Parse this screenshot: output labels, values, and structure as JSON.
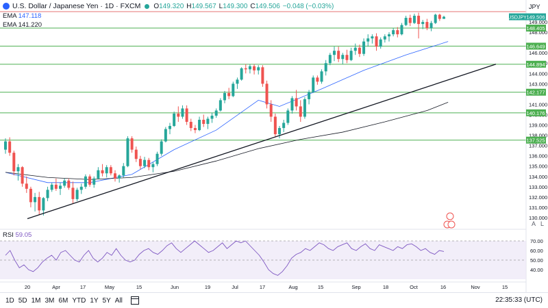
{
  "header": {
    "title": "U.S. Dollar / Japanese Yen · 1D · FXCM",
    "ohlc": [
      {
        "label": "O",
        "value": "149.320"
      },
      {
        "label": "H",
        "value": "149.567"
      },
      {
        "label": "L",
        "value": "149.300"
      },
      {
        "label": "C",
        "value": "149.506"
      },
      {
        "label": "",
        "value": "−0.048 (−0.03%)"
      }
    ],
    "ema1_label": "EMA",
    "ema1_value": "147.118",
    "ema2_label": "EMA",
    "ema2_value": "141.220",
    "currency": "JPY",
    "symbol_badge": "USDJPY",
    "price_badge": "149.506"
  },
  "rsi": {
    "label": "RSI",
    "value": "59.05",
    "ticks": [
      "70.00",
      "60.00",
      "50.00",
      "40.00"
    ]
  },
  "toolbar": {
    "ranges": [
      "1D",
      "5D",
      "1M",
      "3M",
      "6M",
      "YTD",
      "1Y",
      "5Y",
      "All"
    ],
    "clock": "22:35:33 (UTC)",
    "log_btn": "A",
    "scale_btn": "L"
  },
  "colors": {
    "up": "#26a69a",
    "down": "#ef5350",
    "ema_fast": "#2962ff",
    "ema_slow": "#131722",
    "rsi": "#7e57c2",
    "level": "#4caf50",
    "resistance": "#e57373"
  },
  "chart_data": {
    "type": "candlestick",
    "x_tick_labels": [
      "20",
      "Apr",
      "17",
      "May",
      "15",
      "Jun",
      "19",
      "Jul",
      "17",
      "Aug",
      "15",
      "Sep",
      "18",
      "Oct",
      "16",
      "Nov",
      "15"
    ],
    "y_ticks": [
      149.0,
      148.0,
      146.0,
      145.0,
      144.0,
      143.0,
      141.0,
      140.0,
      139.0,
      138.0,
      137.0,
      136.0,
      135.0,
      134.0,
      133.0,
      132.0,
      131.0,
      130.0
    ],
    "ylim": [
      129.2,
      150.2
    ],
    "horizontal_levels": [
      {
        "value": 150.0,
        "label": "",
        "color": "#e57373"
      },
      {
        "value": 148.405,
        "label": "148.405",
        "color": "#4caf50"
      },
      {
        "value": 146.649,
        "label": "146.649",
        "color": "#4caf50"
      },
      {
        "value": 144.894,
        "label": "144.894",
        "color": "#4caf50"
      },
      {
        "value": 142.177,
        "label": "142.177",
        "color": "#4caf50"
      },
      {
        "value": 140.176,
        "label": "140.176",
        "color": "#4caf50"
      },
      {
        "value": 137.525,
        "label": "137.525",
        "color": "#4caf50"
      }
    ],
    "trendline": {
      "from": [
        0.05,
        129.9
      ],
      "to": [
        0.905,
        144.9
      ]
    },
    "candles": [
      [
        136.6,
        137.7,
        136.2,
        137.4
      ],
      [
        137.4,
        137.8,
        136.0,
        136.3
      ],
      [
        136.3,
        136.5,
        134.1,
        134.5
      ],
      [
        134.5,
        135.2,
        133.6,
        134.9
      ],
      [
        134.9,
        135.0,
        133.0,
        133.3
      ],
      [
        133.3,
        134.0,
        132.4,
        132.8
      ],
      [
        132.8,
        133.0,
        131.0,
        131.5
      ],
      [
        131.5,
        132.4,
        130.6,
        132.0
      ],
      [
        132.0,
        132.5,
        130.3,
        130.7
      ],
      [
        130.7,
        132.0,
        130.2,
        131.9
      ],
      [
        131.9,
        133.0,
        131.6,
        132.7
      ],
      [
        132.7,
        133.4,
        132.5,
        133.2
      ],
      [
        133.2,
        133.8,
        132.6,
        132.8
      ],
      [
        132.8,
        133.4,
        132.2,
        133.1
      ],
      [
        133.1,
        133.8,
        132.9,
        133.6
      ],
      [
        133.6,
        133.8,
        132.7,
        132.9
      ],
      [
        132.9,
        133.5,
        131.4,
        131.8
      ],
      [
        131.8,
        132.9,
        131.6,
        132.7
      ],
      [
        132.7,
        133.3,
        132.3,
        133.0
      ],
      [
        133.0,
        134.2,
        132.8,
        134.0
      ],
      [
        134.0,
        134.2,
        133.0,
        133.2
      ],
      [
        133.2,
        134.0,
        132.9,
        133.8
      ],
      [
        133.8,
        134.9,
        133.7,
        134.6
      ],
      [
        134.6,
        135.2,
        134.0,
        134.3
      ],
      [
        134.3,
        135.1,
        133.9,
        134.9
      ],
      [
        134.9,
        135.1,
        134.1,
        134.3
      ],
      [
        134.3,
        134.6,
        133.5,
        133.8
      ],
      [
        133.8,
        134.2,
        133.4,
        134.1
      ],
      [
        134.1,
        135.3,
        133.9,
        135.0
      ],
      [
        135.0,
        137.9,
        134.9,
        137.7
      ],
      [
        137.7,
        137.9,
        136.3,
        136.6
      ],
      [
        136.6,
        136.9,
        135.4,
        135.7
      ],
      [
        135.7,
        136.0,
        134.7,
        135.0
      ],
      [
        135.0,
        135.9,
        134.8,
        135.6
      ],
      [
        135.6,
        135.8,
        134.6,
        134.9
      ],
      [
        134.9,
        135.4,
        134.4,
        135.2
      ],
      [
        135.2,
        136.4,
        135.0,
        136.2
      ],
      [
        136.2,
        137.6,
        136.0,
        137.4
      ],
      [
        137.4,
        138.8,
        137.3,
        138.6
      ],
      [
        138.6,
        139.2,
        138.1,
        138.9
      ],
      [
        138.9,
        140.3,
        138.8,
        140.1
      ],
      [
        140.1,
        140.8,
        139.3,
        139.8
      ],
      [
        139.8,
        140.9,
        139.6,
        140.6
      ],
      [
        140.6,
        140.9,
        139.0,
        139.3
      ],
      [
        139.3,
        139.6,
        138.4,
        138.7
      ],
      [
        138.7,
        139.0,
        138.2,
        138.5
      ],
      [
        138.5,
        139.8,
        138.4,
        139.5
      ],
      [
        139.5,
        140.0,
        138.8,
        139.1
      ],
      [
        139.1,
        139.8,
        138.6,
        139.6
      ],
      [
        139.6,
        140.2,
        139.2,
        139.9
      ],
      [
        139.9,
        140.6,
        139.7,
        140.4
      ],
      [
        140.4,
        141.6,
        140.3,
        141.4
      ],
      [
        141.4,
        142.3,
        141.1,
        142.1
      ],
      [
        142.1,
        142.6,
        141.5,
        141.8
      ],
      [
        141.8,
        143.2,
        141.7,
        143.0
      ],
      [
        143.0,
        143.6,
        142.5,
        143.4
      ],
      [
        143.4,
        144.6,
        143.3,
        144.5
      ],
      [
        144.5,
        144.9,
        144.0,
        144.4
      ],
      [
        144.4,
        144.9,
        144.0,
        144.7
      ],
      [
        144.7,
        144.9,
        143.9,
        144.3
      ],
      [
        144.3,
        144.8,
        143.9,
        144.6
      ],
      [
        144.6,
        144.8,
        142.7,
        143.0
      ],
      [
        143.0,
        143.3,
        140.6,
        141.0
      ],
      [
        141.0,
        141.4,
        139.3,
        139.8
      ],
      [
        139.8,
        140.1,
        137.8,
        138.1
      ],
      [
        138.1,
        138.9,
        137.7,
        138.7
      ],
      [
        138.7,
        139.5,
        138.3,
        139.2
      ],
      [
        139.2,
        140.6,
        139.0,
        140.4
      ],
      [
        140.4,
        141.8,
        140.1,
        141.6
      ],
      [
        141.6,
        142.4,
        140.4,
        140.8
      ],
      [
        140.8,
        141.4,
        139.3,
        139.8
      ],
      [
        139.8,
        141.7,
        139.6,
        141.5
      ],
      [
        141.5,
        142.4,
        141.0,
        142.2
      ],
      [
        142.2,
        143.8,
        142.1,
        143.6
      ],
      [
        143.6,
        143.8,
        142.9,
        143.2
      ],
      [
        143.2,
        144.4,
        143.0,
        144.2
      ],
      [
        144.2,
        145.3,
        143.8,
        145.0
      ],
      [
        145.0,
        146.0,
        144.8,
        145.8
      ],
      [
        145.8,
        146.6,
        145.2,
        146.2
      ],
      [
        146.2,
        146.6,
        145.1,
        145.4
      ],
      [
        145.4,
        146.0,
        144.9,
        145.8
      ],
      [
        145.8,
        146.3,
        145.0,
        145.3
      ],
      [
        145.3,
        146.5,
        145.2,
        146.2
      ],
      [
        146.2,
        146.9,
        145.8,
        146.5
      ],
      [
        146.5,
        146.8,
        145.6,
        145.9
      ],
      [
        145.9,
        147.4,
        145.7,
        147.1
      ],
      [
        147.1,
        147.8,
        146.6,
        147.4
      ],
      [
        147.4,
        147.8,
        146.9,
        147.6
      ],
      [
        147.6,
        147.9,
        146.2,
        146.6
      ],
      [
        146.6,
        147.5,
        146.4,
        147.3
      ],
      [
        147.3,
        147.8,
        147.0,
        147.6
      ],
      [
        147.6,
        148.0,
        147.1,
        147.8
      ],
      [
        147.8,
        148.4,
        147.6,
        148.2
      ],
      [
        148.2,
        148.5,
        147.5,
        147.8
      ],
      [
        147.8,
        148.9,
        147.7,
        148.7
      ],
      [
        148.7,
        149.6,
        148.6,
        149.4
      ],
      [
        149.4,
        149.7,
        148.6,
        148.9
      ],
      [
        148.9,
        149.8,
        148.8,
        149.6
      ],
      [
        149.6,
        149.9,
        147.4,
        148.8
      ],
      [
        148.8,
        149.2,
        148.3,
        149.0
      ],
      [
        149.0,
        149.3,
        148.2,
        148.4
      ],
      [
        148.4,
        149.1,
        148.1,
        148.9
      ],
      [
        148.9,
        149.8,
        148.8,
        149.7
      ],
      [
        149.7,
        149.8,
        149.1,
        149.3
      ],
      [
        149.3,
        149.6,
        149.3,
        149.5
      ]
    ],
    "ema_fast": [
      [
        0,
        134.4
      ],
      [
        10,
        133.4
      ],
      [
        20,
        133.4
      ],
      [
        30,
        134.2
      ],
      [
        40,
        136.6
      ],
      [
        50,
        138.5
      ],
      [
        60,
        141.4
      ],
      [
        65,
        140.8
      ],
      [
        75,
        142.5
      ],
      [
        85,
        144.3
      ],
      [
        95,
        145.8
      ],
      [
        105,
        147.1
      ]
    ],
    "ema_slow": [
      [
        0,
        134.4
      ],
      [
        10,
        133.9
      ],
      [
        20,
        133.7
      ],
      [
        30,
        133.9
      ],
      [
        40,
        134.5
      ],
      [
        50,
        135.5
      ],
      [
        60,
        136.7
      ],
      [
        70,
        137.6
      ],
      [
        80,
        138.3
      ],
      [
        90,
        139.3
      ],
      [
        100,
        140.4
      ],
      [
        105,
        141.2
      ]
    ],
    "rsi_values": [
      55,
      60,
      50,
      42,
      45,
      40,
      38,
      42,
      48,
      52,
      55,
      50,
      58,
      60,
      55,
      50,
      48,
      55,
      60,
      52,
      48,
      52,
      58,
      55,
      62,
      55,
      50,
      48,
      50,
      56,
      60,
      62,
      58,
      56,
      60,
      65,
      68,
      62,
      58,
      62,
      66,
      70,
      66,
      62,
      58,
      60,
      64,
      68,
      62,
      66,
      70,
      68,
      70,
      65,
      60,
      55,
      48,
      40,
      36,
      34,
      38,
      44,
      52,
      56,
      58,
      62,
      60,
      64,
      68,
      66,
      62,
      60,
      64,
      66,
      68,
      62,
      60,
      64,
      67,
      62,
      60,
      66,
      64,
      62,
      60,
      64,
      62,
      66,
      67,
      64,
      60,
      62,
      58,
      56,
      60,
      59
    ],
    "rsi_ylim": [
      30,
      75
    ]
  }
}
